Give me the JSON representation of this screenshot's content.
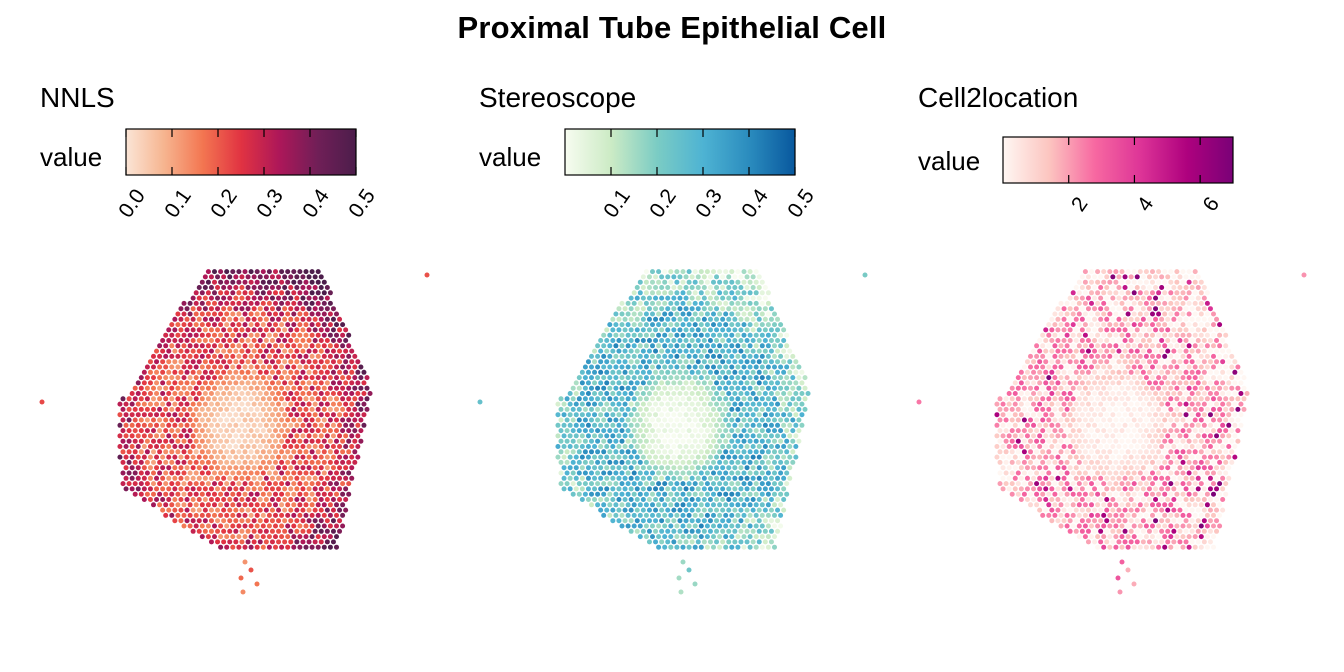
{
  "title": "Proximal Tube Epithelial Cell",
  "legend_title": "value",
  "chart_data": [
    {
      "type": "heatmap",
      "method": "NNLS",
      "colorbar": {
        "min": 0.0,
        "max": 0.5,
        "ticks": [
          0.0,
          0.1,
          0.2,
          0.3,
          0.4,
          0.5
        ],
        "tick_labels": [
          "0.0",
          "0.1",
          "0.2",
          "0.3",
          "0.4",
          "0.5"
        ],
        "colors": [
          "#fbe5d6",
          "#f6b48f",
          "#f37651",
          "#e13342",
          "#ad1759",
          "#701f57",
          "#4c1d4b"
        ]
      },
      "pattern": {
        "center": 0.03,
        "mid": 0.22,
        "edge": 0.4,
        "noise": 0.12
      },
      "legend": "top-left"
    },
    {
      "type": "heatmap",
      "method": "Stereoscope",
      "colorbar": {
        "min": 0.0,
        "max": 0.5,
        "ticks": [
          0.1,
          0.2,
          0.3,
          0.4,
          0.5
        ],
        "tick_labels": [
          "0.1",
          "0.2",
          "0.3",
          "0.4",
          "0.5"
        ],
        "colors": [
          "#f7fcf0",
          "#ccebc5",
          "#7bccc4",
          "#4eb3d3",
          "#2b8cbe",
          "#08589e"
        ]
      },
      "pattern": {
        "center": 0.01,
        "mid": 0.28,
        "edge": 0.12,
        "noise": 0.14
      },
      "legend": "top-left"
    },
    {
      "type": "heatmap",
      "method": "Cell2location",
      "colorbar": {
        "min": 0.0,
        "max": 7.0,
        "ticks": [
          2,
          4,
          6
        ],
        "tick_labels": [
          "2",
          "4",
          "6"
        ],
        "colors": [
          "#fff7f3",
          "#fcc5c0",
          "#f768a1",
          "#dd3497",
          "#ae017e",
          "#7a0177"
        ]
      },
      "pattern": {
        "center": 0.1,
        "mid": 1.6,
        "edge": 0.6,
        "noise": 1.8
      },
      "legend": "top-left"
    }
  ]
}
